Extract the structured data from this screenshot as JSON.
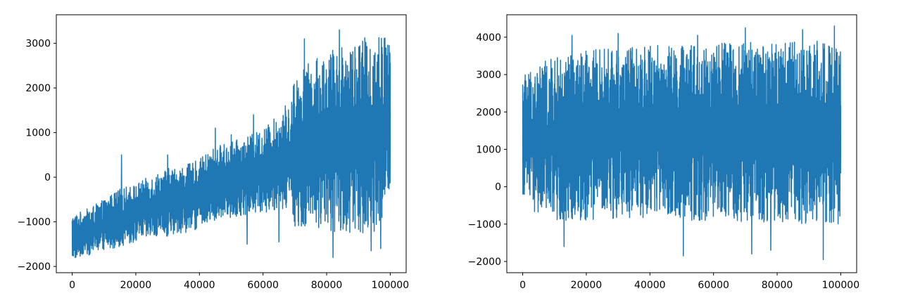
{
  "chart_data": [
    {
      "type": "line",
      "title": "",
      "xlabel": "",
      "ylabel": "",
      "xlim": [
        -5000,
        105000
      ],
      "ylim": [
        -2140,
        3640
      ],
      "xticks": [
        0,
        20000,
        40000,
        60000,
        80000,
        100000
      ],
      "xtick_labels": [
        "0",
        "20000",
        "40000",
        "60000",
        "80000",
        "100000"
      ],
      "yticks": [
        -2000,
        -1000,
        0,
        1000,
        2000,
        3000
      ],
      "ytick_labels": [
        "−2000",
        "−1000",
        "0",
        "1000",
        "2000",
        "3000"
      ],
      "grid": false,
      "series": [
        {
          "color": "#1f77b4",
          "envelope": {
            "x": [
              0,
              5000,
              10000,
              15000,
              20000,
              25000,
              30000,
              35000,
              40000,
              45000,
              50000,
              55000,
              60000,
              65000,
              68000,
              70000,
              75000,
              80000,
              85000,
              90000,
              95000,
              100000
            ],
            "upper": [
              -850,
              -700,
              -500,
              -250,
              -150,
              50,
              200,
              250,
              400,
              700,
              800,
              900,
              1100,
              1400,
              1550,
              2300,
              2600,
              2800,
              3000,
              3100,
              3200,
              3200
            ],
            "lower": [
              -1850,
              -1750,
              -1650,
              -1550,
              -1450,
              -1400,
              -1350,
              -1250,
              -1150,
              -1000,
              -900,
              -850,
              -800,
              -750,
              -700,
              -1100,
              -1150,
              -1200,
              -1250,
              -1250,
              -1300,
              -600
            ],
            "spikes_high": [
              [
                15500,
                500
              ],
              [
                30000,
                500
              ],
              [
                45000,
                1100
              ],
              [
                50000,
                950
              ],
              [
                57000,
                1400
              ],
              [
                67000,
                1600
              ],
              [
                73000,
                3100
              ],
              [
                84000,
                3300
              ],
              [
                94000,
                3450
              ],
              [
                97000,
                3400
              ]
            ],
            "spikes_low": [
              [
                55000,
                -1500
              ],
              [
                65000,
                -1450
              ],
              [
                82000,
                -1800
              ],
              [
                94000,
                -1650
              ],
              [
                97000,
                -1600
              ]
            ]
          }
        }
      ]
    },
    {
      "type": "line",
      "title": "",
      "xlabel": "",
      "ylabel": "",
      "xlim": [
        -5000,
        105000
      ],
      "ylim": [
        -2300,
        4600
      ],
      "xticks": [
        0,
        20000,
        40000,
        60000,
        80000,
        100000
      ],
      "xtick_labels": [
        "0",
        "20000",
        "40000",
        "60000",
        "80000",
        "100000"
      ],
      "yticks": [
        -2000,
        -1000,
        0,
        1000,
        2000,
        3000,
        4000
      ],
      "ytick_labels": [
        "−2000",
        "−1000",
        "0",
        "1000",
        "2000",
        "3000",
        "4000"
      ],
      "grid": false,
      "series": [
        {
          "color": "#1f77b4",
          "envelope": {
            "x": [
              0,
              5000,
              10000,
              15000,
              20000,
              25000,
              30000,
              35000,
              40000,
              45000,
              50000,
              55000,
              60000,
              65000,
              70000,
              75000,
              80000,
              85000,
              90000,
              95000,
              100000
            ],
            "upper": [
              3100,
              3300,
              3450,
              3550,
              3650,
              3700,
              3750,
              3750,
              3800,
              3800,
              3800,
              3800,
              3850,
              3850,
              3850,
              3900,
              3900,
              3900,
              3900,
              3900,
              3700
            ],
            "lower": [
              -200,
              -900,
              -1000,
              -900,
              -900,
              -850,
              -850,
              -850,
              -850,
              -850,
              -900,
              -900,
              -900,
              -950,
              -950,
              -950,
              -950,
              -1000,
              -1000,
              -1000,
              -1000
            ],
            "spikes_high": [
              [
                15500,
                4050
              ],
              [
                30000,
                4100
              ],
              [
                55000,
                4050
              ],
              [
                70000,
                4250
              ],
              [
                88000,
                4200
              ],
              [
                98000,
                4300
              ]
            ],
            "spikes_low": [
              [
                13000,
                -1600
              ],
              [
                50500,
                -1850
              ],
              [
                72000,
                -1800
              ],
              [
                78000,
                -1700
              ],
              [
                94500,
                -1950
              ]
            ]
          }
        }
      ]
    }
  ]
}
